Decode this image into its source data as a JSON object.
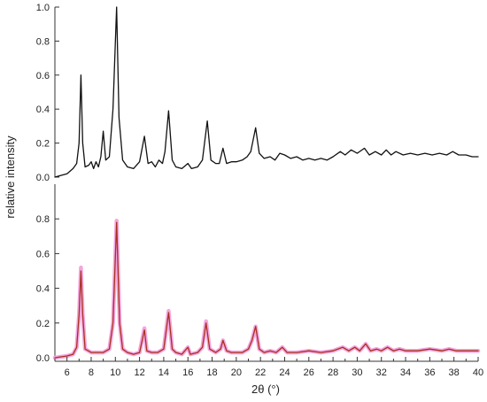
{
  "chart_data": {
    "type": "line",
    "ylabel": "relative intensity",
    "xlabel": "2θ (°)",
    "xlim": [
      5,
      40
    ],
    "grid": false,
    "legend": "none",
    "x_ticks": [
      6,
      8,
      10,
      12,
      14,
      16,
      18,
      20,
      22,
      24,
      26,
      28,
      30,
      32,
      34,
      36,
      38,
      40
    ],
    "x_tick_labels": [
      "6",
      "8",
      "10",
      "12",
      "14",
      "16",
      "18",
      "20",
      "22",
      "24",
      "26",
      "28",
      "30",
      "32",
      "34",
      "36",
      "38",
      "40"
    ],
    "panels": [
      {
        "id": "top",
        "ylim": [
          0,
          1.0
        ],
        "y_ticks": [
          0.0,
          0.2,
          0.4,
          0.6,
          0.8,
          1.0
        ],
        "y_tick_labels": [
          "0.0",
          "0.2",
          "0.4",
          "0.6",
          "0.8",
          "1.0"
        ],
        "series": [
          {
            "color": "#111111",
            "points": [
              [
                5.0,
                0.0
              ],
              [
                5.5,
                0.01
              ],
              [
                6.0,
                0.02
              ],
              [
                6.5,
                0.05
              ],
              [
                6.8,
                0.08
              ],
              [
                7.0,
                0.2
              ],
              [
                7.15,
                0.6
              ],
              [
                7.3,
                0.2
              ],
              [
                7.5,
                0.06
              ],
              [
                7.8,
                0.07
              ],
              [
                8.0,
                0.09
              ],
              [
                8.2,
                0.05
              ],
              [
                8.4,
                0.09
              ],
              [
                8.6,
                0.06
              ],
              [
                8.8,
                0.12
              ],
              [
                9.0,
                0.27
              ],
              [
                9.2,
                0.1
              ],
              [
                9.5,
                0.12
              ],
              [
                9.8,
                0.4
              ],
              [
                10.1,
                1.0
              ],
              [
                10.3,
                0.35
              ],
              [
                10.6,
                0.1
              ],
              [
                11.0,
                0.06
              ],
              [
                11.5,
                0.05
              ],
              [
                12.0,
                0.09
              ],
              [
                12.4,
                0.24
              ],
              [
                12.7,
                0.08
              ],
              [
                13.0,
                0.09
              ],
              [
                13.3,
                0.06
              ],
              [
                13.6,
                0.1
              ],
              [
                13.9,
                0.08
              ],
              [
                14.1,
                0.15
              ],
              [
                14.4,
                0.39
              ],
              [
                14.7,
                0.1
              ],
              [
                15.0,
                0.06
              ],
              [
                15.5,
                0.05
              ],
              [
                16.0,
                0.08
              ],
              [
                16.3,
                0.05
              ],
              [
                16.8,
                0.06
              ],
              [
                17.2,
                0.1
              ],
              [
                17.6,
                0.33
              ],
              [
                17.9,
                0.1
              ],
              [
                18.3,
                0.08
              ],
              [
                18.6,
                0.08
              ],
              [
                18.9,
                0.17
              ],
              [
                19.2,
                0.08
              ],
              [
                19.6,
                0.09
              ],
              [
                20.0,
                0.09
              ],
              [
                20.5,
                0.1
              ],
              [
                20.9,
                0.12
              ],
              [
                21.2,
                0.15
              ],
              [
                21.6,
                0.29
              ],
              [
                21.9,
                0.14
              ],
              [
                22.3,
                0.11
              ],
              [
                22.8,
                0.12
              ],
              [
                23.2,
                0.1
              ],
              [
                23.6,
                0.14
              ],
              [
                24.0,
                0.13
              ],
              [
                24.5,
                0.11
              ],
              [
                25.0,
                0.12
              ],
              [
                25.5,
                0.1
              ],
              [
                26.0,
                0.11
              ],
              [
                26.5,
                0.1
              ],
              [
                27.0,
                0.11
              ],
              [
                27.5,
                0.1
              ],
              [
                28.0,
                0.12
              ],
              [
                28.6,
                0.15
              ],
              [
                29.0,
                0.13
              ],
              [
                29.5,
                0.16
              ],
              [
                30.0,
                0.14
              ],
              [
                30.6,
                0.17
              ],
              [
                31.0,
                0.13
              ],
              [
                31.5,
                0.15
              ],
              [
                32.0,
                0.13
              ],
              [
                32.4,
                0.16
              ],
              [
                32.8,
                0.13
              ],
              [
                33.2,
                0.15
              ],
              [
                33.8,
                0.13
              ],
              [
                34.4,
                0.14
              ],
              [
                35.0,
                0.13
              ],
              [
                35.6,
                0.14
              ],
              [
                36.2,
                0.13
              ],
              [
                36.8,
                0.14
              ],
              [
                37.4,
                0.13
              ],
              [
                37.9,
                0.15
              ],
              [
                38.4,
                0.13
              ],
              [
                39.0,
                0.13
              ],
              [
                39.5,
                0.12
              ],
              [
                40.0,
                0.12
              ]
            ]
          }
        ]
      },
      {
        "id": "bottom",
        "ylim": [
          0,
          1.0
        ],
        "y_ticks": [
          0.0,
          0.2,
          0.4,
          0.6,
          0.8
        ],
        "y_tick_labels": [
          "0.0",
          "0.2",
          "0.4",
          "0.6",
          "0.8"
        ],
        "series": [
          {
            "color": "#f3a6df",
            "width": 4.5,
            "points": [
              [
                5.0,
                0.0
              ],
              [
                6.0,
                0.01
              ],
              [
                6.5,
                0.02
              ],
              [
                6.8,
                0.06
              ],
              [
                7.0,
                0.25
              ],
              [
                7.15,
                0.52
              ],
              [
                7.3,
                0.25
              ],
              [
                7.5,
                0.05
              ],
              [
                8.0,
                0.03
              ],
              [
                8.5,
                0.03
              ],
              [
                9.0,
                0.03
              ],
              [
                9.5,
                0.05
              ],
              [
                9.8,
                0.2
              ],
              [
                10.1,
                0.79
              ],
              [
                10.35,
                0.2
              ],
              [
                10.6,
                0.05
              ],
              [
                11.0,
                0.03
              ],
              [
                11.5,
                0.02
              ],
              [
                12.0,
                0.03
              ],
              [
                12.4,
                0.17
              ],
              [
                12.6,
                0.04
              ],
              [
                13.0,
                0.03
              ],
              [
                13.5,
                0.03
              ],
              [
                14.0,
                0.05
              ],
              [
                14.4,
                0.27
              ],
              [
                14.7,
                0.05
              ],
              [
                15.0,
                0.03
              ],
              [
                15.5,
                0.02
              ],
              [
                16.0,
                0.06
              ],
              [
                16.2,
                0.02
              ],
              [
                16.8,
                0.03
              ],
              [
                17.2,
                0.06
              ],
              [
                17.5,
                0.21
              ],
              [
                17.8,
                0.05
              ],
              [
                18.3,
                0.03
              ],
              [
                18.7,
                0.05
              ],
              [
                18.9,
                0.1
              ],
              [
                19.2,
                0.04
              ],
              [
                19.6,
                0.03
              ],
              [
                20.0,
                0.03
              ],
              [
                20.5,
                0.03
              ],
              [
                21.0,
                0.05
              ],
              [
                21.3,
                0.1
              ],
              [
                21.6,
                0.18
              ],
              [
                21.9,
                0.05
              ],
              [
                22.3,
                0.03
              ],
              [
                22.8,
                0.04
              ],
              [
                23.3,
                0.03
              ],
              [
                23.8,
                0.06
              ],
              [
                24.2,
                0.03
              ],
              [
                25.0,
                0.03
              ],
              [
                26.0,
                0.04
              ],
              [
                27.0,
                0.03
              ],
              [
                28.0,
                0.04
              ],
              [
                28.8,
                0.06
              ],
              [
                29.3,
                0.04
              ],
              [
                29.8,
                0.06
              ],
              [
                30.2,
                0.04
              ],
              [
                30.7,
                0.08
              ],
              [
                31.1,
                0.04
              ],
              [
                31.6,
                0.05
              ],
              [
                32.0,
                0.04
              ],
              [
                32.5,
                0.06
              ],
              [
                33.0,
                0.04
              ],
              [
                33.5,
                0.05
              ],
              [
                34.0,
                0.04
              ],
              [
                35.0,
                0.04
              ],
              [
                36.0,
                0.05
              ],
              [
                37.0,
                0.04
              ],
              [
                37.6,
                0.05
              ],
              [
                38.2,
                0.04
              ],
              [
                39.0,
                0.04
              ],
              [
                40.0,
                0.04
              ]
            ]
          },
          {
            "color": "#a8301f",
            "width": 1.3,
            "points": [
              [
                5.0,
                0.0
              ],
              [
                6.0,
                0.01
              ],
              [
                6.5,
                0.02
              ],
              [
                6.8,
                0.06
              ],
              [
                7.0,
                0.25
              ],
              [
                7.15,
                0.5
              ],
              [
                7.3,
                0.25
              ],
              [
                7.5,
                0.05
              ],
              [
                8.0,
                0.03
              ],
              [
                8.5,
                0.03
              ],
              [
                9.0,
                0.03
              ],
              [
                9.5,
                0.05
              ],
              [
                9.8,
                0.2
              ],
              [
                10.1,
                0.78
              ],
              [
                10.35,
                0.2
              ],
              [
                10.6,
                0.05
              ],
              [
                11.0,
                0.03
              ],
              [
                11.5,
                0.02
              ],
              [
                12.0,
                0.03
              ],
              [
                12.4,
                0.16
              ],
              [
                12.6,
                0.04
              ],
              [
                13.0,
                0.03
              ],
              [
                13.5,
                0.03
              ],
              [
                14.0,
                0.05
              ],
              [
                14.4,
                0.26
              ],
              [
                14.7,
                0.05
              ],
              [
                15.0,
                0.03
              ],
              [
                15.5,
                0.02
              ],
              [
                16.0,
                0.06
              ],
              [
                16.2,
                0.02
              ],
              [
                16.8,
                0.03
              ],
              [
                17.2,
                0.06
              ],
              [
                17.5,
                0.2
              ],
              [
                17.8,
                0.05
              ],
              [
                18.3,
                0.03
              ],
              [
                18.7,
                0.05
              ],
              [
                18.9,
                0.1
              ],
              [
                19.2,
                0.04
              ],
              [
                19.6,
                0.03
              ],
              [
                20.0,
                0.03
              ],
              [
                20.5,
                0.03
              ],
              [
                21.0,
                0.05
              ],
              [
                21.3,
                0.1
              ],
              [
                21.6,
                0.18
              ],
              [
                21.9,
                0.05
              ],
              [
                22.3,
                0.03
              ],
              [
                22.8,
                0.04
              ],
              [
                23.3,
                0.03
              ],
              [
                23.8,
                0.06
              ],
              [
                24.2,
                0.03
              ],
              [
                25.0,
                0.03
              ],
              [
                26.0,
                0.04
              ],
              [
                27.0,
                0.03
              ],
              [
                28.0,
                0.04
              ],
              [
                28.8,
                0.06
              ],
              [
                29.3,
                0.04
              ],
              [
                29.8,
                0.06
              ],
              [
                30.2,
                0.04
              ],
              [
                30.7,
                0.08
              ],
              [
                31.1,
                0.04
              ],
              [
                31.6,
                0.05
              ],
              [
                32.0,
                0.04
              ],
              [
                32.5,
                0.06
              ],
              [
                33.0,
                0.04
              ],
              [
                33.5,
                0.05
              ],
              [
                34.0,
                0.04
              ],
              [
                35.0,
                0.04
              ],
              [
                36.0,
                0.05
              ],
              [
                37.0,
                0.04
              ],
              [
                37.6,
                0.05
              ],
              [
                38.2,
                0.04
              ],
              [
                39.0,
                0.04
              ],
              [
                40.0,
                0.04
              ]
            ]
          }
        ]
      }
    ]
  }
}
